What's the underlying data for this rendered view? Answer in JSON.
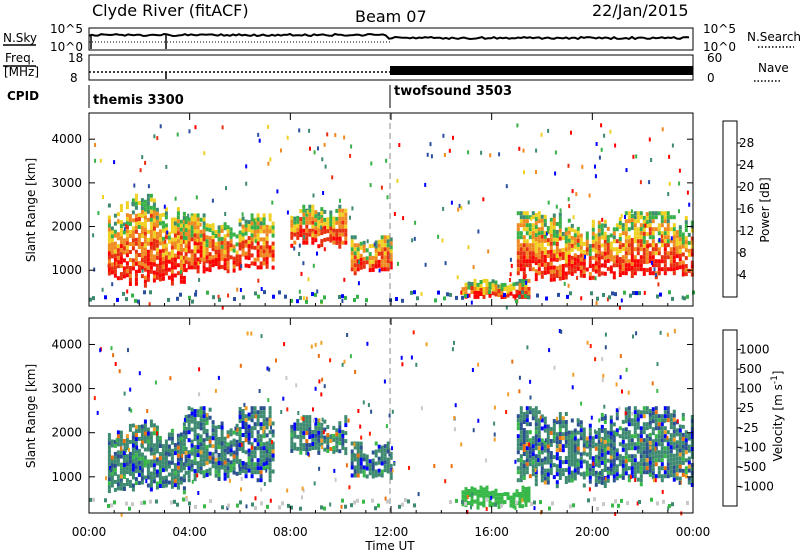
{
  "header": {
    "station": "Clyde River (fitACF)",
    "beam": "Beam 07",
    "date": "22/Jan/2015"
  },
  "strip_panels": {
    "nsky": {
      "label": "N.Sky",
      "right_label": "N.Search",
      "ticks_left": [
        "10^5",
        "10^0"
      ],
      "ticks_right": [
        "10^5",
        "10^0"
      ]
    },
    "freq": {
      "label_top": "Freq.",
      "label_bottom": "[MHz]",
      "right_label": "Nave",
      "ticks_left": [
        "18",
        "8"
      ],
      "ticks_right": [
        "60",
        "0"
      ]
    },
    "cpid": {
      "label": "CPID",
      "modes": [
        {
          "name": "themis 3300",
          "start_hour": 0
        },
        {
          "name": "twofsound 3503",
          "start_hour": 12
        }
      ]
    }
  },
  "chart_data": [
    {
      "type": "heatmap",
      "name": "power-panel",
      "ylabel": "Slant Range [km]",
      "xlabel": "",
      "xlim_hours": [
        0,
        24
      ],
      "ylim": [
        180,
        4600
      ],
      "yticks": [
        "1000",
        "2000",
        "3000",
        "4000"
      ],
      "colorbar": {
        "label": "Power [dB]",
        "ticks": [
          "4",
          "8",
          "12",
          "16",
          "20",
          "24",
          "28"
        ],
        "range": [
          0,
          32
        ],
        "colors": [
          "#0000ff",
          "#2a4ea0",
          "#3d8a70",
          "#38b048",
          "#f0d020",
          "#f08a20",
          "#e83010",
          "#ff0000"
        ]
      },
      "regions": [
        {
          "t0": 0.75,
          "t1": 3.8,
          "r0": 550,
          "r1": 2750,
          "scale": "power"
        },
        {
          "t0": 3.8,
          "t1": 7.3,
          "r0": 900,
          "r1": 2300,
          "scale": "power"
        },
        {
          "t0": 8.0,
          "t1": 10.2,
          "r0": 1500,
          "r1": 2500,
          "scale": "power"
        },
        {
          "t0": 10.4,
          "t1": 12.0,
          "r0": 900,
          "r1": 1800,
          "scale": "power"
        },
        {
          "t0": 14.8,
          "t1": 17.5,
          "r0": 350,
          "r1": 800,
          "scale": "power"
        },
        {
          "t0": 17.0,
          "t1": 24.0,
          "r0": 700,
          "r1": 2350,
          "scale": "power"
        }
      ]
    },
    {
      "type": "heatmap",
      "name": "velocity-panel",
      "ylabel": "Slant Range [km]",
      "xlabel": "Time UT",
      "xlim_hours": [
        0,
        24
      ],
      "ylim": [
        180,
        4600
      ],
      "yticks": [
        "1000",
        "2000",
        "3000",
        "4000"
      ],
      "xticks": [
        "00:00",
        "04:00",
        "08:00",
        "12:00",
        "16:00",
        "20:00",
        "00:00"
      ],
      "colorbar": {
        "label": "Velocity [m s",
        "label_sup": "-1",
        "label_end": "]",
        "ticks": [
          "1000",
          "500",
          "100",
          "25",
          "-25",
          "-100",
          "-500",
          "-1000"
        ],
        "colors": [
          "#0000ff",
          "#2a5090",
          "#3d8a70",
          "#38b848",
          "#c8c8c8",
          "#f0a028",
          "#e87010",
          "#ff2000",
          "#ff0000"
        ]
      },
      "regions": [
        {
          "t0": 0.75,
          "t1": 3.8,
          "r0": 550,
          "r1": 2300,
          "scale": "vel"
        },
        {
          "t0": 3.8,
          "t1": 7.3,
          "r0": 800,
          "r1": 2600,
          "scale": "vel"
        },
        {
          "t0": 8.0,
          "t1": 10.2,
          "r0": 1500,
          "r1": 2400,
          "scale": "vel"
        },
        {
          "t0": 10.4,
          "t1": 12.0,
          "r0": 900,
          "r1": 1800,
          "scale": "vel"
        },
        {
          "t0": 14.8,
          "t1": 17.5,
          "r0": 300,
          "r1": 800,
          "scale": "vel"
        },
        {
          "t0": 17.0,
          "t1": 24.0,
          "r0": 700,
          "r1": 2600,
          "scale": "vel"
        }
      ]
    }
  ]
}
